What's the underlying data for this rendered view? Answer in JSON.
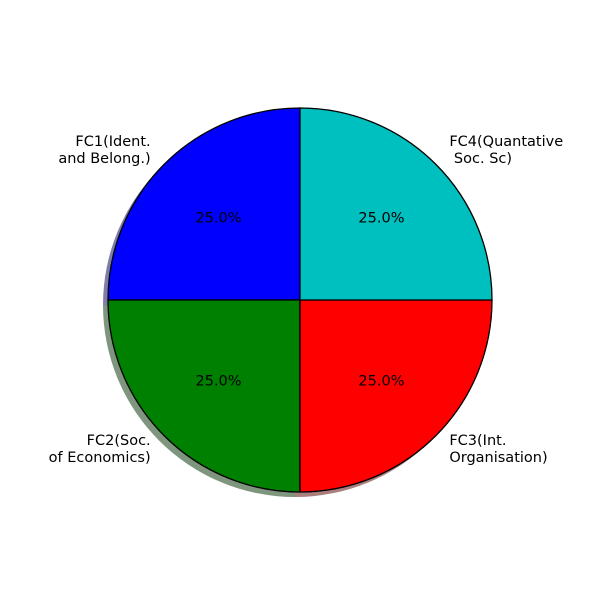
{
  "chart_data": {
    "type": "pie",
    "title": "",
    "slices": [
      {
        "label": "FC1(Ident.\n and Belong.)",
        "value": 25,
        "percent_label": "25.0%",
        "color": "#0000ff"
      },
      {
        "label": "FC2(Soc.\nof Economics)",
        "value": 25,
        "percent_label": "25.0%",
        "color": "#008000"
      },
      {
        "label": "FC3(Int.\nOrganisation)",
        "value": 25,
        "percent_label": "25.0%",
        "color": "#ff0000"
      },
      {
        "label": "FC4(Quantative\n Soc. Sc)",
        "value": 25,
        "percent_label": "25.0%",
        "color": "#00bfbf"
      }
    ],
    "start_angle": 90,
    "counterclock": true,
    "shadow": true,
    "edge_color": "#000000",
    "legend": "none"
  }
}
